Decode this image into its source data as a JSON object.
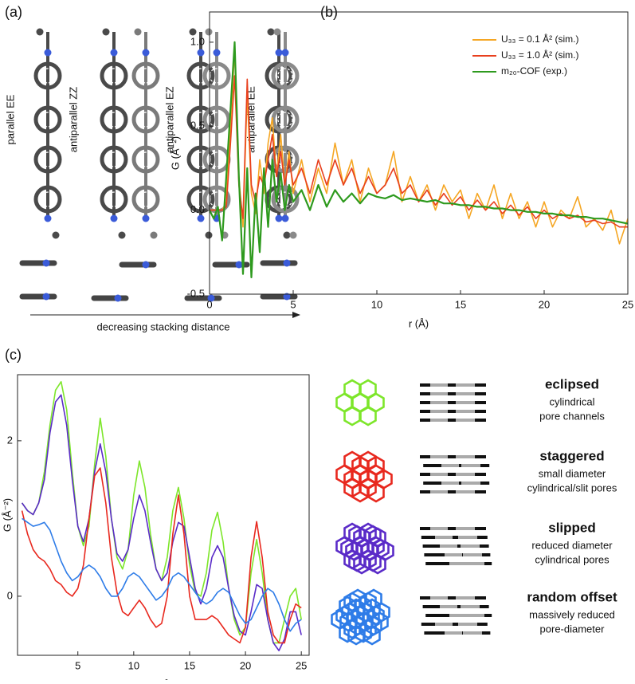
{
  "panel_labels": [
    "(a)",
    "(b)",
    "(c)"
  ],
  "stacking": {
    "labels": [
      "parallel EE",
      "antiparallel ZZ",
      "antiparallel EZ",
      "antiparallel EE"
    ],
    "arrow_label": "decreasing stacking distance"
  },
  "structures": [
    {
      "title": "eclipsed",
      "lines": [
        "cylindrical",
        "pore channels"
      ],
      "color": "#7de62a"
    },
    {
      "title": "staggered",
      "lines": [
        "small diameter",
        "cylindrical/slit pores"
      ],
      "color": "#e8281e"
    },
    {
      "title": "slipped",
      "lines": [
        "reduced diameter",
        "cylindrical pores"
      ],
      "color": "#5a2bc8"
    },
    {
      "title": "random offset",
      "lines": [
        "massively reduced",
        "pore-diameter"
      ],
      "color": "#2e7ce8"
    }
  ],
  "chart_data": [
    {
      "type": "line",
      "xlabel": "r (Å)",
      "ylabel": "G (Å⁻²)",
      "xlim": [
        0,
        25
      ],
      "xticks": [
        0,
        5,
        10,
        15,
        20,
        25
      ],
      "ylim": [
        -0.5,
        1.18
      ],
      "yticks": [
        -0.5,
        {
          "value": 0,
          "label": "0.0"
        },
        0.5,
        {
          "value": 1,
          "label": "1.0"
        }
      ],
      "legend": "upper right",
      "x": [
        0,
        0.25,
        0.5,
        0.75,
        1,
        1.25,
        1.5,
        1.75,
        2,
        2.25,
        2.5,
        2.75,
        3,
        3.25,
        3.5,
        3.75,
        4,
        4.25,
        4.5,
        4.75,
        5,
        5.5,
        6,
        6.5,
        7,
        7.5,
        8,
        8.5,
        9,
        9.5,
        10,
        10.5,
        11,
        11.5,
        12,
        12.5,
        13,
        13.5,
        14,
        14.5,
        15,
        15.5,
        16,
        16.5,
        17,
        17.5,
        18,
        18.5,
        19,
        19.5,
        20,
        20.5,
        21,
        21.5,
        22,
        22.5,
        23,
        23.5,
        24,
        24.5,
        25
      ],
      "series": [
        {
          "name": "U₃₃ = 0.1 Å² (sim.)",
          "color": "#f5a623",
          "values": [
            0,
            0,
            0,
            0,
            0.05,
            0.5,
            0.95,
            0.2,
            -0.1,
            0.7,
            0.1,
            -0.02,
            0.3,
            0.1,
            0.4,
            0.55,
            0.2,
            0.45,
            0.15,
            0.35,
            0.1,
            0.3,
            0.05,
            0.25,
            0.1,
            0.4,
            0.15,
            0.3,
            0.05,
            0.25,
            0.1,
            0.15,
            0.35,
            0.05,
            0.2,
            0.05,
            0.15,
            0,
            0.15,
            0.05,
            0.12,
            -0.05,
            0.1,
            0,
            0.15,
            -0.05,
            0.1,
            -0.05,
            0.05,
            -0.1,
            0.05,
            -0.1,
            0,
            -0.05,
            0.08,
            -0.1,
            -0.05,
            -0.12,
            0,
            -0.2,
            -0.05
          ]
        },
        {
          "name": "U₃₃ = 1.0 Å² (sim.)",
          "color": "#e8401e",
          "values": [
            0,
            0,
            0,
            0,
            0.02,
            0.4,
            0.8,
            0.15,
            -0.05,
            0.78,
            0.15,
            0.05,
            0.2,
            0.15,
            0.3,
            0.45,
            0.2,
            0.35,
            0.15,
            0.3,
            0.15,
            0.25,
            0.1,
            0.3,
            0.15,
            0.3,
            0.15,
            0.25,
            0.1,
            0.2,
            0.1,
            0.15,
            0.25,
            0.1,
            0.15,
            0.05,
            0.12,
            0.03,
            0.1,
            0.03,
            0.08,
            0,
            0.06,
            0,
            0.05,
            -0.02,
            0.03,
            -0.03,
            0.02,
            -0.05,
            0,
            -0.05,
            -0.02,
            -0.05,
            -0.03,
            -0.07,
            -0.06,
            -0.08,
            -0.07,
            -0.1,
            -0.1
          ]
        },
        {
          "name": "m₂₀-COF (exp.)",
          "color": "#2e9a1e",
          "values": [
            0,
            -0.05,
            0.02,
            -0.18,
            0.2,
            0.6,
            1.0,
            0.2,
            -0.38,
            0.25,
            -0.4,
            0.1,
            -0.25,
            0.25,
            -0.1,
            0.3,
            0.05,
            0.22,
            0,
            0.15,
            0.05,
            0.12,
            0,
            0.15,
            0.02,
            0.12,
            0.05,
            0.1,
            0.04,
            0.1,
            0.08,
            0.07,
            0.09,
            0.06,
            0.07,
            0.06,
            0.05,
            0.06,
            0.04,
            0.04,
            0.03,
            0.03,
            0.02,
            0.02,
            0.01,
            0.01,
            0,
            0,
            -0.01,
            -0.01,
            -0.02,
            -0.02,
            -0.03,
            -0.03,
            -0.04,
            -0.04,
            -0.05,
            -0.05,
            -0.06,
            -0.07,
            -0.08
          ]
        }
      ]
    },
    {
      "type": "line",
      "xlabel": "r (Å)",
      "ylabel": "G (Å⁻²)",
      "xlim": [
        -0.4,
        25.7
      ],
      "xticks": [
        5,
        10,
        15,
        20,
        25
      ],
      "ylim": [
        -0.76,
        2.85
      ],
      "yticks": [
        0,
        2
      ],
      "x": [
        0,
        0.5,
        1,
        1.5,
        2,
        2.5,
        3,
        3.5,
        4,
        4.5,
        5,
        5.5,
        6,
        6.5,
        7,
        7.5,
        8,
        8.5,
        9,
        9.5,
        10,
        10.5,
        11,
        11.5,
        12,
        12.5,
        13,
        13.5,
        14,
        14.5,
        15,
        15.5,
        16,
        16.5,
        17,
        17.5,
        18,
        18.5,
        19,
        19.5,
        20,
        20.5,
        21,
        21.5,
        22,
        22.5,
        23,
        23.5,
        24,
        24.5,
        25
      ],
      "series": [
        {
          "color": "#7de62a",
          "values": [
            1.2,
            1.1,
            1.05,
            1.2,
            1.6,
            2.2,
            2.65,
            2.76,
            2.4,
            1.6,
            0.9,
            0.65,
            0.9,
            1.7,
            2.29,
            1.8,
            1.0,
            0.5,
            0.35,
            0.6,
            1.3,
            1.74,
            1.4,
            0.8,
            0.35,
            0.2,
            0.5,
            1.1,
            1.4,
            1.0,
            0.4,
            0.05,
            0,
            0.3,
            0.85,
            1.08,
            0.7,
            0.1,
            -0.3,
            -0.5,
            -0.4,
            0.3,
            0.73,
            0.3,
            -0.3,
            -0.6,
            -0.6,
            -0.3,
            0,
            0.1,
            -0.3
          ]
        },
        {
          "color": "#5a2bc8",
          "values": [
            1.2,
            1.1,
            1.05,
            1.2,
            1.5,
            2.1,
            2.5,
            2.59,
            2.2,
            1.5,
            0.9,
            0.7,
            1.0,
            1.6,
            1.96,
            1.6,
            1.0,
            0.55,
            0.45,
            0.6,
            1.0,
            1.3,
            1.1,
            0.7,
            0.35,
            0.2,
            0.3,
            0.7,
            0.95,
            0.9,
            0.5,
            0.1,
            -0.1,
            0.1,
            0.5,
            0.65,
            0.5,
            0.1,
            -0.25,
            -0.45,
            -0.5,
            -0.2,
            0.15,
            0.1,
            -0.3,
            -0.6,
            -0.7,
            -0.55,
            -0.2,
            -0.2,
            -0.5
          ]
        },
        {
          "color": "#e8281e",
          "values": [
            1.1,
            0.8,
            0.6,
            0.5,
            0.45,
            0.35,
            0.2,
            0.15,
            0.05,
            0,
            0.1,
            0.4,
            1.0,
            1.55,
            1.65,
            1.2,
            0.5,
            0.05,
            -0.2,
            -0.25,
            -0.15,
            -0.05,
            -0.15,
            -0.3,
            -0.4,
            -0.35,
            0,
            0.8,
            1.3,
            0.8,
            0,
            -0.3,
            -0.3,
            -0.3,
            -0.25,
            -0.3,
            -0.4,
            -0.5,
            -0.55,
            -0.6,
            -0.4,
            0.5,
            0.96,
            0.5,
            -0.2,
            -0.5,
            -0.6,
            -0.6,
            -0.3,
            -0.1,
            -0.15
          ]
        },
        {
          "color": "#2e7ce8",
          "values": [
            1.0,
            0.95,
            0.9,
            0.92,
            0.95,
            0.85,
            0.65,
            0.45,
            0.3,
            0.2,
            0.25,
            0.35,
            0.4,
            0.35,
            0.25,
            0.1,
            0,
            0,
            0.1,
            0.25,
            0.3,
            0.25,
            0.15,
            0.05,
            -0.05,
            0,
            0.1,
            0.25,
            0.3,
            0.25,
            0.15,
            0.05,
            -0.05,
            -0.1,
            -0.05,
            0.05,
            0.1,
            0.05,
            -0.1,
            -0.25,
            -0.35,
            -0.3,
            -0.15,
            0,
            0.1,
            0.05,
            -0.1,
            -0.3,
            -0.45,
            -0.35,
            -0.3
          ]
        }
      ]
    }
  ]
}
